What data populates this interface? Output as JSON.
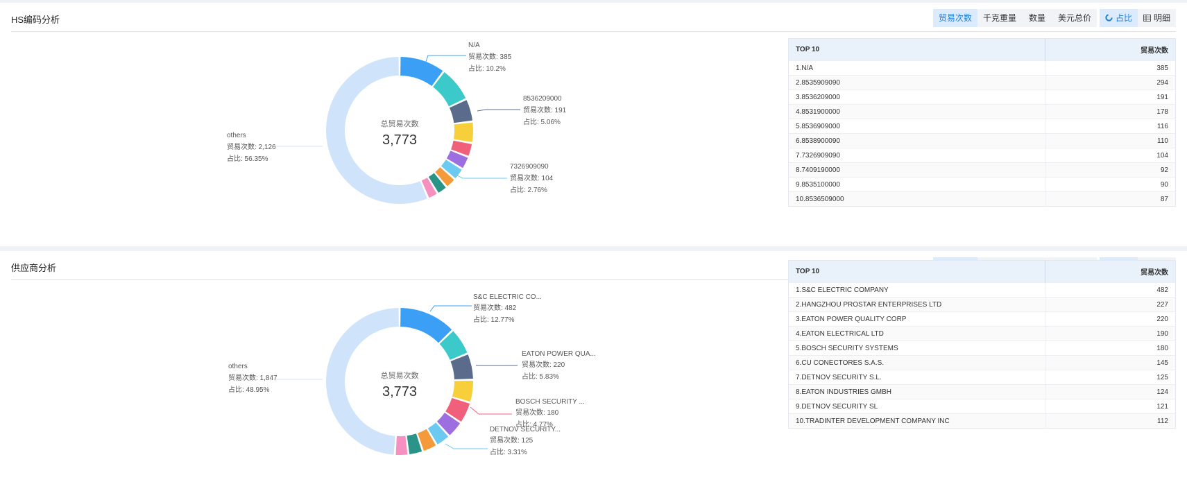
{
  "toolbar": {
    "buttons": [
      "贸易次数",
      "千克重量",
      "数量",
      "美元总价"
    ],
    "view_ratio": "占比",
    "view_detail": "明细"
  },
  "hs": {
    "title": "HS编码分析",
    "center_label": "总贸易次数",
    "center_value": "3,773",
    "table_header": [
      "TOP 10",
      "贸易次数"
    ],
    "rows": [
      {
        "name": "1.N/A",
        "value": "385"
      },
      {
        "name": "2.8535909090",
        "value": "294"
      },
      {
        "name": "3.8536209000",
        "value": "191"
      },
      {
        "name": "4.8531900000",
        "value": "178"
      },
      {
        "name": "5.8536909000",
        "value": "116"
      },
      {
        "name": "6.8538900090",
        "value": "110"
      },
      {
        "name": "7.7326909090",
        "value": "104"
      },
      {
        "name": "8.7409190000",
        "value": "92"
      },
      {
        "name": "9.8535100000",
        "value": "90"
      },
      {
        "name": "10.8536509000",
        "value": "87"
      }
    ],
    "callouts": [
      {
        "name": "N/A",
        "count": "贸易次数: 385",
        "pct": "占比: 10.2%"
      },
      {
        "name": "8536209000",
        "count": "贸易次数: 191",
        "pct": "占比: 5.06%"
      },
      {
        "name": "7326909090",
        "count": "贸易次数: 104",
        "pct": "占比: 2.76%"
      },
      {
        "name": "others",
        "count": "贸易次数: 2,126",
        "pct": "占比: 56.35%"
      }
    ]
  },
  "supplier": {
    "title": "供应商分析",
    "center_label": "总贸易次数",
    "center_value": "3,773",
    "table_header": [
      "TOP 10",
      "贸易次数"
    ],
    "rows": [
      {
        "name": "1.S&C ELECTRIC COMPANY",
        "value": "482"
      },
      {
        "name": "2.HANGZHOU PROSTAR ENTERPRISES LTD",
        "value": "227"
      },
      {
        "name": "3.EATON POWER QUALITY CORP",
        "value": "220"
      },
      {
        "name": "4.EATON ELECTRICAL LTD",
        "value": "190"
      },
      {
        "name": "5.BOSCH SECURITY SYSTEMS",
        "value": "180"
      },
      {
        "name": "6.CU CONECTORES S.A.S.",
        "value": "145"
      },
      {
        "name": "7.DETNOV SECURITY S.L.",
        "value": "125"
      },
      {
        "name": "8.EATON INDUSTRIES GMBH",
        "value": "124"
      },
      {
        "name": "9.DETNOV SECURITY SL",
        "value": "121"
      },
      {
        "name": "10.TRADINTER DEVELOPMENT COMPANY INC",
        "value": "112"
      }
    ],
    "callouts": [
      {
        "name": "S&C ELECTRIC CO...",
        "count": "贸易次数: 482",
        "pct": "占比: 12.77%"
      },
      {
        "name": "EATON POWER QUA...",
        "count": "贸易次数: 220",
        "pct": "占比: 5.83%"
      },
      {
        "name": "BOSCH SECURITY ...",
        "count": "贸易次数: 180",
        "pct": "占比: 4.77%"
      },
      {
        "name": "DETNOV SECURITY...",
        "count": "贸易次数: 125",
        "pct": "占比: 3.31%"
      },
      {
        "name": "others",
        "count": "贸易次数: 1,847",
        "pct": "占比: 48.95%"
      }
    ]
  },
  "chart_data": [
    {
      "type": "pie",
      "categories": [
        "N/A",
        "8535909090",
        "8536209000",
        "8531900000",
        "8536909000",
        "8538900090",
        "7326909090",
        "7409190000",
        "8535100000",
        "8536509000",
        "others"
      ],
      "values": [
        385,
        294,
        191,
        178,
        116,
        110,
        104,
        92,
        90,
        87,
        2126
      ],
      "colors": [
        "#3ba0f5",
        "#3cc9c9",
        "#5a6b8c",
        "#f7cf3b",
        "#f0607a",
        "#9d6ee0",
        "#6ccaf0",
        "#f59a3a",
        "#2a9488",
        "#f590c0",
        "#cfe4fb"
      ]
    },
    {
      "type": "pie",
      "categories": [
        "S&C ELECTRIC COMPANY",
        "HANGZHOU PROSTAR ENTERPRISES LTD",
        "EATON POWER QUALITY CORP",
        "EATON ELECTRICAL LTD",
        "BOSCH SECURITY SYSTEMS",
        "CU CONECTORES S.A.S.",
        "DETNOV SECURITY S.L.",
        "EATON INDUSTRIES GMBH",
        "DETNOV SECURITY SL",
        "TRADINTER DEVELOPMENT COMPANY INC",
        "others"
      ],
      "values": [
        482,
        227,
        220,
        190,
        180,
        145,
        125,
        124,
        121,
        112,
        1847
      ],
      "colors": [
        "#3ba0f5",
        "#3cc9c9",
        "#5a6b8c",
        "#f7cf3b",
        "#f0607a",
        "#9d6ee0",
        "#6ccaf0",
        "#f59a3a",
        "#2a9488",
        "#f590c0",
        "#cfe4fb"
      ]
    }
  ]
}
